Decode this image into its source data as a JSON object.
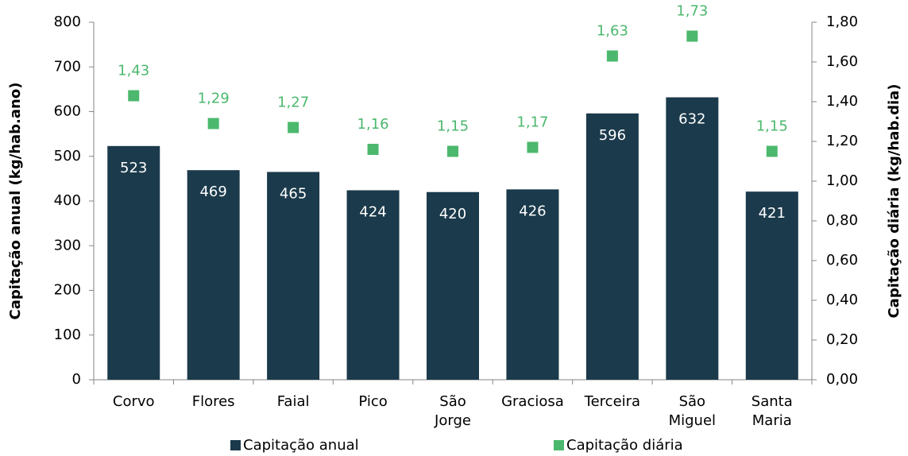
{
  "chart_data": {
    "type": "bar",
    "categories": [
      "Corvo",
      "Flores",
      "Faial",
      "Pico",
      "São Jorge",
      "Graciosa",
      "Terceira",
      "São Miguel",
      "Santa Maria"
    ],
    "series": [
      {
        "name": "Capitação anual",
        "type": "bar",
        "color": "#1b3a4b",
        "values": [
          523,
          469,
          465,
          424,
          420,
          426,
          596,
          632,
          421
        ]
      },
      {
        "name": "Capitação diária",
        "type": "scatter",
        "axis": "y2",
        "color": "#4cb86e",
        "values": [
          1.43,
          1.29,
          1.27,
          1.16,
          1.15,
          1.17,
          1.63,
          1.73,
          1.15
        ],
        "value_labels": [
          "1,43",
          "1,29",
          "1,27",
          "1,16",
          "1,15",
          "1,17",
          "1,63",
          "1,73",
          "1,15"
        ]
      }
    ],
    "ylabel": "Capitação anual (kg/hab.ano)",
    "y2label": "Capitação diária (kg/hab.dia)",
    "ylim": [
      0,
      800
    ],
    "yticks": [
      0,
      100,
      200,
      300,
      400,
      500,
      600,
      700,
      800
    ],
    "y2lim": [
      0,
      1.8
    ],
    "y2ticks": [
      {
        "value": 0,
        "label": "0,00"
      },
      {
        "value": 0.2,
        "label": "0,20"
      },
      {
        "value": 0.4,
        "label": "0,40"
      },
      {
        "value": 0.6,
        "label": "0,60"
      },
      {
        "value": 0.8,
        "label": "0,80"
      },
      {
        "value": 1.0,
        "label": "1,00"
      },
      {
        "value": 1.2,
        "label": "1,20"
      },
      {
        "value": 1.4,
        "label": "1,40"
      },
      {
        "value": 1.6,
        "label": "1,60"
      },
      {
        "value": 1.8,
        "label": "1,80"
      }
    ],
    "legend": "bottom",
    "grid": false
  }
}
